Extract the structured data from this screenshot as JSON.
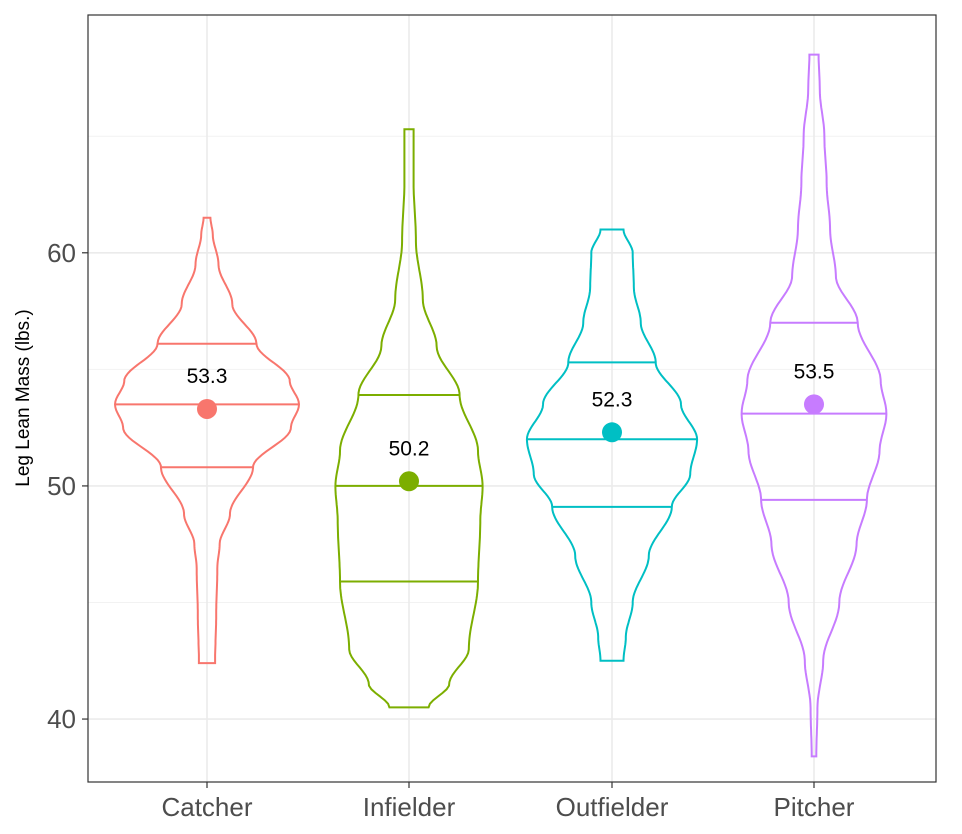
{
  "chart_data": {
    "type": "violin",
    "title": "",
    "xlabel": "",
    "ylabel": "Leg Lean Mass (lbs.)",
    "ylim": [
      37.3,
      70.2
    ],
    "y_ticks": [
      40,
      50,
      60
    ],
    "y_minor_ticks": [
      45,
      55,
      65
    ],
    "grid": true,
    "legend": "none",
    "categories": [
      "Catcher",
      "Infielder",
      "Outfielder",
      "Pitcher"
    ],
    "colors": [
      "#F8766D",
      "#7CAE00",
      "#00BFC4",
      "#C77CFF"
    ],
    "series": [
      {
        "category": "Catcher",
        "mean": 53.3,
        "mean_label": "53.3",
        "min": 42.4,
        "max": 61.5,
        "quantiles": [
          50.8,
          53.5,
          56.1
        ],
        "density_profile": [
          [
            42.4,
            0.07
          ],
          [
            44.5,
            0.08
          ],
          [
            46.5,
            0.09
          ],
          [
            47.5,
            0.11
          ],
          [
            48.8,
            0.2
          ],
          [
            50.8,
            0.4
          ],
          [
            52.5,
            0.73
          ],
          [
            53.5,
            0.8
          ],
          [
            54.5,
            0.72
          ],
          [
            56.1,
            0.43
          ],
          [
            57.8,
            0.22
          ],
          [
            59.5,
            0.1
          ],
          [
            60.8,
            0.05
          ],
          [
            61.5,
            0.03
          ]
        ]
      },
      {
        "category": "Infielder",
        "mean": 50.2,
        "mean_label": "50.2",
        "min": 40.5,
        "max": 65.3,
        "quantiles": [
          45.9,
          50.0,
          53.9
        ],
        "density_profile": [
          [
            40.5,
            0.17
          ],
          [
            41.5,
            0.35
          ],
          [
            43.0,
            0.52
          ],
          [
            45.9,
            0.6
          ],
          [
            48.5,
            0.62
          ],
          [
            50.0,
            0.64
          ],
          [
            51.5,
            0.6
          ],
          [
            53.9,
            0.44
          ],
          [
            56.0,
            0.24
          ],
          [
            58.0,
            0.12
          ],
          [
            60.5,
            0.06
          ],
          [
            63.0,
            0.04
          ],
          [
            65.3,
            0.04
          ]
        ]
      },
      {
        "category": "Outfielder",
        "mean": 52.3,
        "mean_label": "52.3",
        "min": 42.5,
        "max": 61.0,
        "quantiles": [
          49.1,
          52.0,
          55.3
        ],
        "density_profile": [
          [
            42.5,
            0.1
          ],
          [
            43.5,
            0.12
          ],
          [
            45.0,
            0.18
          ],
          [
            47.0,
            0.32
          ],
          [
            49.1,
            0.52
          ],
          [
            50.5,
            0.68
          ],
          [
            52.0,
            0.74
          ],
          [
            53.5,
            0.6
          ],
          [
            55.3,
            0.38
          ],
          [
            57.0,
            0.25
          ],
          [
            58.5,
            0.19
          ],
          [
            60.0,
            0.18
          ],
          [
            61.0,
            0.1
          ]
        ]
      },
      {
        "category": "Pitcher",
        "mean": 53.5,
        "mean_label": "53.5",
        "min": 38.4,
        "max": 68.5,
        "quantiles": [
          49.4,
          53.1,
          57.0
        ],
        "density_profile": [
          [
            38.4,
            0.02
          ],
          [
            40.5,
            0.03
          ],
          [
            42.5,
            0.08
          ],
          [
            45.0,
            0.22
          ],
          [
            47.5,
            0.37
          ],
          [
            49.4,
            0.46
          ],
          [
            51.5,
            0.57
          ],
          [
            53.1,
            0.63
          ],
          [
            54.5,
            0.58
          ],
          [
            57.0,
            0.38
          ],
          [
            59.0,
            0.19
          ],
          [
            61.0,
            0.14
          ],
          [
            63.0,
            0.11
          ],
          [
            65.0,
            0.09
          ],
          [
            67.0,
            0.05
          ],
          [
            68.5,
            0.04
          ]
        ]
      }
    ]
  }
}
